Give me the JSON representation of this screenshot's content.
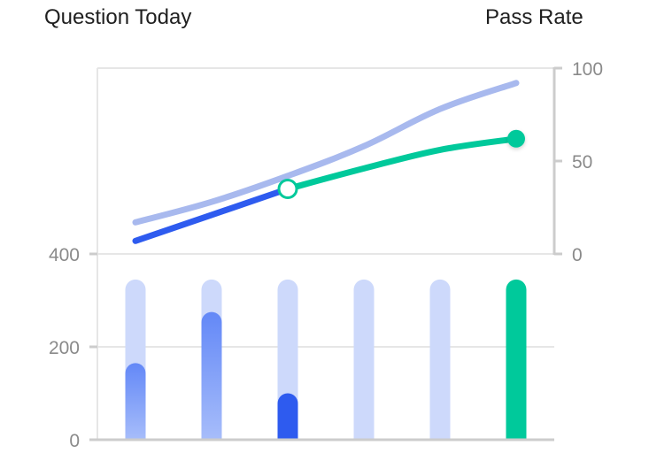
{
  "header": {
    "left_title": "Question Today",
    "right_title": "Pass Rate"
  },
  "colors": {
    "bar_track": "#cdd9fb",
    "bar_gradient_top": "#6388f7",
    "bar_gradient_bottom": "#a7bdfa",
    "bar_dark_blue": "#2e5bef",
    "bar_green": "#00c99b",
    "line_light_blue": "#a8b9ee",
    "line_dark_blue": "#2e5bef",
    "line_green": "#00c99b",
    "axis": "#cccccc",
    "grid": "#e6e6e6"
  },
  "chart_data": [
    {
      "type": "bar",
      "title": "Question Today",
      "categories": [
        "",
        "",
        "",
        "",
        "",
        ""
      ],
      "track_value": 345,
      "values": [
        165,
        275,
        100,
        0,
        0,
        345
      ],
      "ylim": [
        0,
        400
      ],
      "yticks": [
        0,
        200,
        400
      ],
      "grid": true,
      "bar_styles": [
        "gradient",
        "gradient",
        "dark",
        "none",
        "none",
        "green"
      ]
    },
    {
      "type": "line",
      "title": "Pass Rate",
      "x": [
        0,
        1,
        2,
        3,
        4,
        5
      ],
      "ylim": [
        0,
        100
      ],
      "yticks": [
        0,
        50,
        100
      ],
      "axis_side": "right",
      "series": [
        {
          "style": "light",
          "values": [
            17,
            28,
            42,
            58,
            78,
            92
          ]
        },
        {
          "style": "dark",
          "values": [
            7,
            21,
            35,
            null,
            null,
            null
          ]
        },
        {
          "style": "green",
          "values": [
            null,
            null,
            35,
            46,
            56,
            62
          ],
          "hollow_marker_index": 2,
          "filled_marker_index": 5
        }
      ]
    }
  ]
}
